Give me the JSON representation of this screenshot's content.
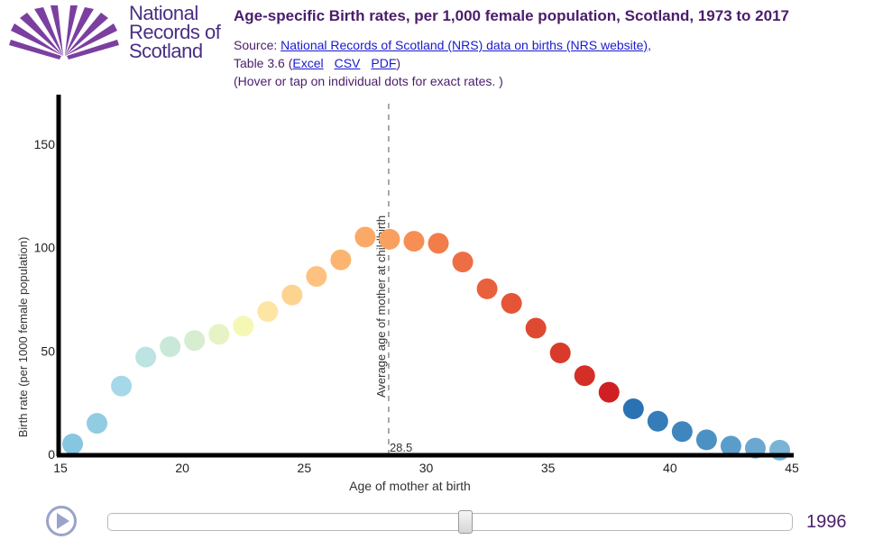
{
  "header": {
    "logo_lines": [
      "National",
      "Records of",
      "Scotland"
    ],
    "title": "Age-specific Birth rates, per 1,000 female population, Scotland, 1973 to 2017",
    "source_prefix": "Source: ",
    "source_link": "National Records of Scotland (NRS) data on births (NRS website)",
    "source_suffix": ",",
    "table_prefix": "Table 3.6 (",
    "excel_link": "Excel",
    "csv_link": "CSV",
    "pdf_link": "PDF",
    "table_suffix": ")",
    "hint": "(Hover or tap on individual dots for exact rates. )"
  },
  "colors": {
    "brand_purple": "#4a2e83",
    "title_purple": "#4a1d6b",
    "link_blue": "#1a1acc"
  },
  "controls": {
    "play_icon": "play-icon",
    "slider_min": 1973,
    "slider_max": 2017,
    "slider_value": 1996,
    "year_label": "1996"
  },
  "chart_data": {
    "type": "scatter",
    "title": "Age-specific Birth rates, per 1,000 female population, Scotland, 1973 to 2017",
    "xlabel": "Age of mother at birth",
    "ylabel": "Birth rate (per 1000 female population)",
    "xlim": [
      15,
      45
    ],
    "ylim": [
      0,
      170
    ],
    "x_ticks": [
      15,
      20,
      25,
      30,
      35,
      40,
      45
    ],
    "y_ticks": [
      0,
      50,
      100,
      150
    ],
    "grid": false,
    "year": "1996",
    "average_line": {
      "label": "Average age of mother at childbirth",
      "value": 28.5,
      "value_label": "28.5"
    },
    "points": [
      {
        "x": 15.5,
        "y": 5,
        "color": "#87c6e0"
      },
      {
        "x": 16.5,
        "y": 15,
        "color": "#91cce3"
      },
      {
        "x": 17.5,
        "y": 33,
        "color": "#a6d8ea"
      },
      {
        "x": 18.5,
        "y": 47,
        "color": "#bde3e2"
      },
      {
        "x": 19.5,
        "y": 52,
        "color": "#c9e8d8"
      },
      {
        "x": 20.5,
        "y": 55,
        "color": "#d6edcf"
      },
      {
        "x": 21.5,
        "y": 58,
        "color": "#e6f3c4"
      },
      {
        "x": 22.5,
        "y": 62,
        "color": "#f5f8b5"
      },
      {
        "x": 23.5,
        "y": 69,
        "color": "#fde6a4"
      },
      {
        "x": 24.5,
        "y": 77,
        "color": "#fdd390"
      },
      {
        "x": 25.5,
        "y": 86,
        "color": "#fdc27f"
      },
      {
        "x": 26.5,
        "y": 94,
        "color": "#fcb570"
      },
      {
        "x": 27.5,
        "y": 105,
        "color": "#fba966"
      },
      {
        "x": 28.5,
        "y": 104,
        "color": "#faa05f"
      },
      {
        "x": 29.5,
        "y": 103,
        "color": "#f78e53"
      },
      {
        "x": 30.5,
        "y": 102,
        "color": "#f27d4a"
      },
      {
        "x": 31.5,
        "y": 93,
        "color": "#ee6e43"
      },
      {
        "x": 32.5,
        "y": 80,
        "color": "#e9603d"
      },
      {
        "x": 33.5,
        "y": 73,
        "color": "#e45537"
      },
      {
        "x": 34.5,
        "y": 61,
        "color": "#de4a31"
      },
      {
        "x": 35.5,
        "y": 49,
        "color": "#d93b2a"
      },
      {
        "x": 36.5,
        "y": 38,
        "color": "#d42f26"
      },
      {
        "x": 37.5,
        "y": 30,
        "color": "#d01f22"
      },
      {
        "x": 38.5,
        "y": 22,
        "color": "#2b72b4"
      },
      {
        "x": 39.5,
        "y": 16,
        "color": "#357cb9"
      },
      {
        "x": 40.5,
        "y": 11,
        "color": "#3f86bf"
      },
      {
        "x": 41.5,
        "y": 7,
        "color": "#4b91c4"
      },
      {
        "x": 42.5,
        "y": 4,
        "color": "#5a9dcb"
      },
      {
        "x": 43.5,
        "y": 3,
        "color": "#6aa8d1"
      },
      {
        "x": 44.5,
        "y": 2,
        "color": "#7ab3d6"
      }
    ]
  }
}
